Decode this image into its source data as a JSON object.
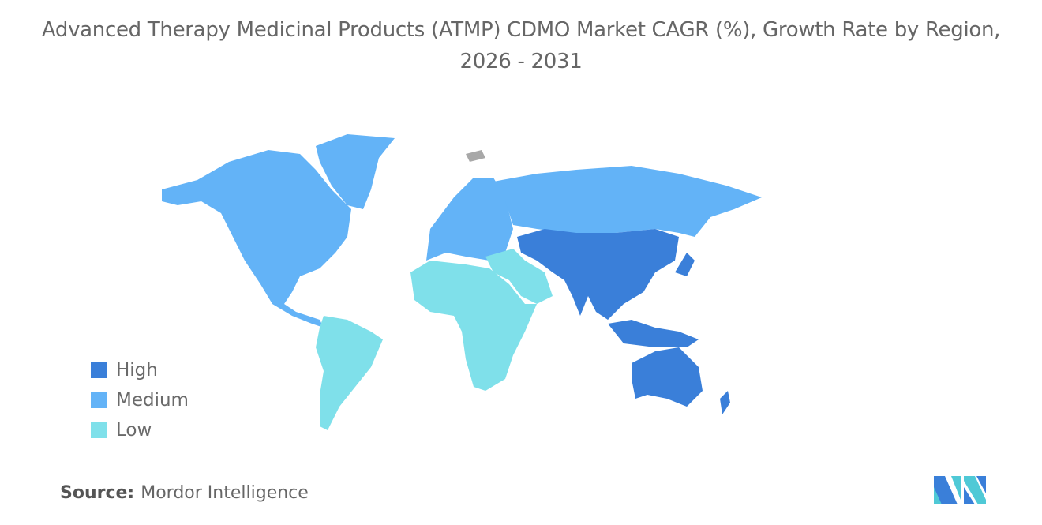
{
  "title": "Advanced Therapy Medicinal Products (ATMP) CDMO Market CAGR (%), Growth Rate by Region, 2026 - 2031",
  "legend": {
    "items": [
      {
        "label": "High",
        "color": "#3a7fd9"
      },
      {
        "label": "Medium",
        "color": "#63b3f7"
      },
      {
        "label": "Low",
        "color": "#7fe0ea"
      }
    ]
  },
  "regions": {
    "north_america": "Medium",
    "europe": "Medium",
    "russia": "Medium",
    "south_america": "Low",
    "africa": "Low",
    "middle_east": "Low",
    "asia_pacific": "High"
  },
  "no_data_color": "#a8a8a8",
  "source": {
    "label": "Source:",
    "value": "Mordor Intelligence"
  }
}
